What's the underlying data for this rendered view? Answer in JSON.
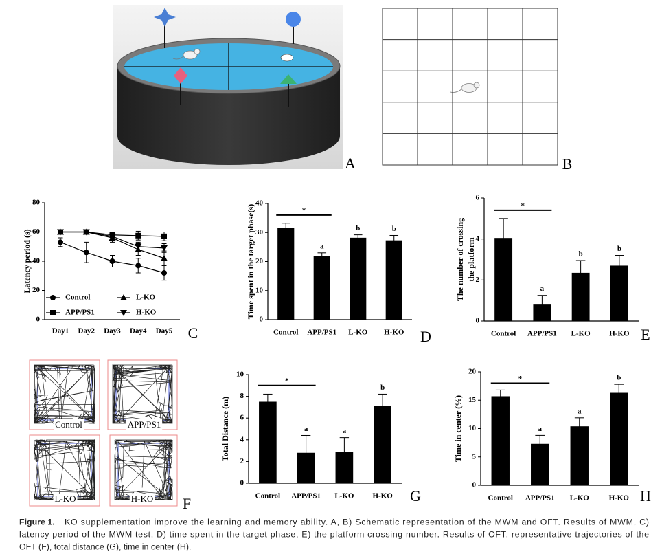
{
  "panel_labels": {
    "a": "A",
    "b": "B",
    "f": "F"
  },
  "trajectory_labels": [
    "Control",
    "APP/PS1",
    "L-KO",
    "H-KO"
  ],
  "caption": {
    "label": "Figure 1.",
    "lines": [
      "KO supplementation improve the learning and memory ability. A, B) Schematic representation of the MWM and OFT. Results of MWM, C)",
      "latency period of the MWM test, D) time spent in the target phase, E) the platform crossing number. Results of OFT, representative trajectories of the",
      "OFT (F), total distance (G), time in center (H)."
    ]
  },
  "chart_data": [
    {
      "type": "line",
      "panel": "C",
      "ylabel": "Latency period (s)",
      "categories": [
        "Day1",
        "Day2",
        "Day3",
        "Day4",
        "Day5"
      ],
      "ylim": [
        0,
        80
      ],
      "yticks": [
        0,
        20,
        40,
        60,
        80
      ],
      "legend": "lower left",
      "color": "#000000",
      "series": [
        {
          "name": "Control",
          "marker": "circle",
          "values": [
            53,
            46,
            40,
            37,
            32
          ],
          "errors": [
            3,
            7,
            4,
            5,
            5
          ]
        },
        {
          "name": "APP/PS1",
          "marker": "square",
          "values": [
            60,
            60,
            58,
            57.5,
            57
          ],
          "errors": [
            1,
            1,
            2,
            3,
            3
          ]
        },
        {
          "name": "L-KO",
          "marker": "triangle-up",
          "values": [
            60,
            60,
            56,
            48,
            42
          ],
          "errors": [
            1,
            1,
            3,
            4,
            5
          ]
        },
        {
          "name": "H-KO",
          "marker": "triangle-down",
          "values": [
            60,
            60,
            57,
            50,
            49
          ],
          "errors": [
            1,
            1,
            2,
            3,
            3
          ]
        }
      ]
    },
    {
      "type": "bar",
      "panel": "D",
      "ylabel": "Time spent in the target phase(s)",
      "categories": [
        "Control",
        "APP/PS1",
        "L-KO",
        "H-KO"
      ],
      "values": [
        31.5,
        22,
        28.2,
        27.3
      ],
      "errors": [
        1.7,
        1,
        1,
        1.7
      ],
      "bar_labels": [
        null,
        "a",
        "b",
        "b"
      ],
      "significance_label": "*",
      "color": "#000000",
      "ylim": [
        0,
        40
      ],
      "yticks": [
        0,
        10,
        20,
        30,
        40
      ]
    },
    {
      "type": "bar",
      "panel": "E",
      "ylabel": [
        "The number of crossing",
        "the platform"
      ],
      "categories": [
        "Control",
        "APP/PS1",
        "L-KO",
        "H-KO"
      ],
      "values": [
        4.05,
        0.8,
        2.35,
        2.7
      ],
      "errors": [
        0.95,
        0.45,
        0.6,
        0.5
      ],
      "bar_labels": [
        null,
        "a",
        "b",
        "b"
      ],
      "significance_label": "*",
      "color": "#000000",
      "ylim": [
        0,
        6
      ],
      "yticks": [
        0,
        2,
        4,
        6
      ]
    },
    {
      "type": "bar",
      "panel": "G",
      "ylabel": "Total Distance (m)",
      "categories": [
        "Control",
        "APP/PS1",
        "L-KO",
        "H-KO"
      ],
      "values": [
        7.5,
        2.8,
        2.9,
        7.1
      ],
      "errors": [
        0.7,
        1.6,
        1.3,
        1.1
      ],
      "bar_labels": [
        null,
        "a",
        "a",
        "b"
      ],
      "significance_label": "*",
      "color": "#000000",
      "ylim": [
        0,
        10
      ],
      "yticks": [
        0,
        2,
        4,
        6,
        8,
        10
      ]
    },
    {
      "type": "bar",
      "panel": "H",
      "ylabel": "Time in center (%)",
      "categories": [
        "Control",
        "APP/PS1",
        "L-KO",
        "H-KO"
      ],
      "values": [
        15.7,
        7.3,
        10.4,
        16.3
      ],
      "errors": [
        1.1,
        1.5,
        1.5,
        1.5
      ],
      "bar_labels": [
        null,
        "a",
        "a",
        "b"
      ],
      "significance_label": "*",
      "color": "#000000",
      "ylim": [
        0,
        20
      ],
      "yticks": [
        0,
        5,
        10,
        15,
        20
      ]
    }
  ]
}
